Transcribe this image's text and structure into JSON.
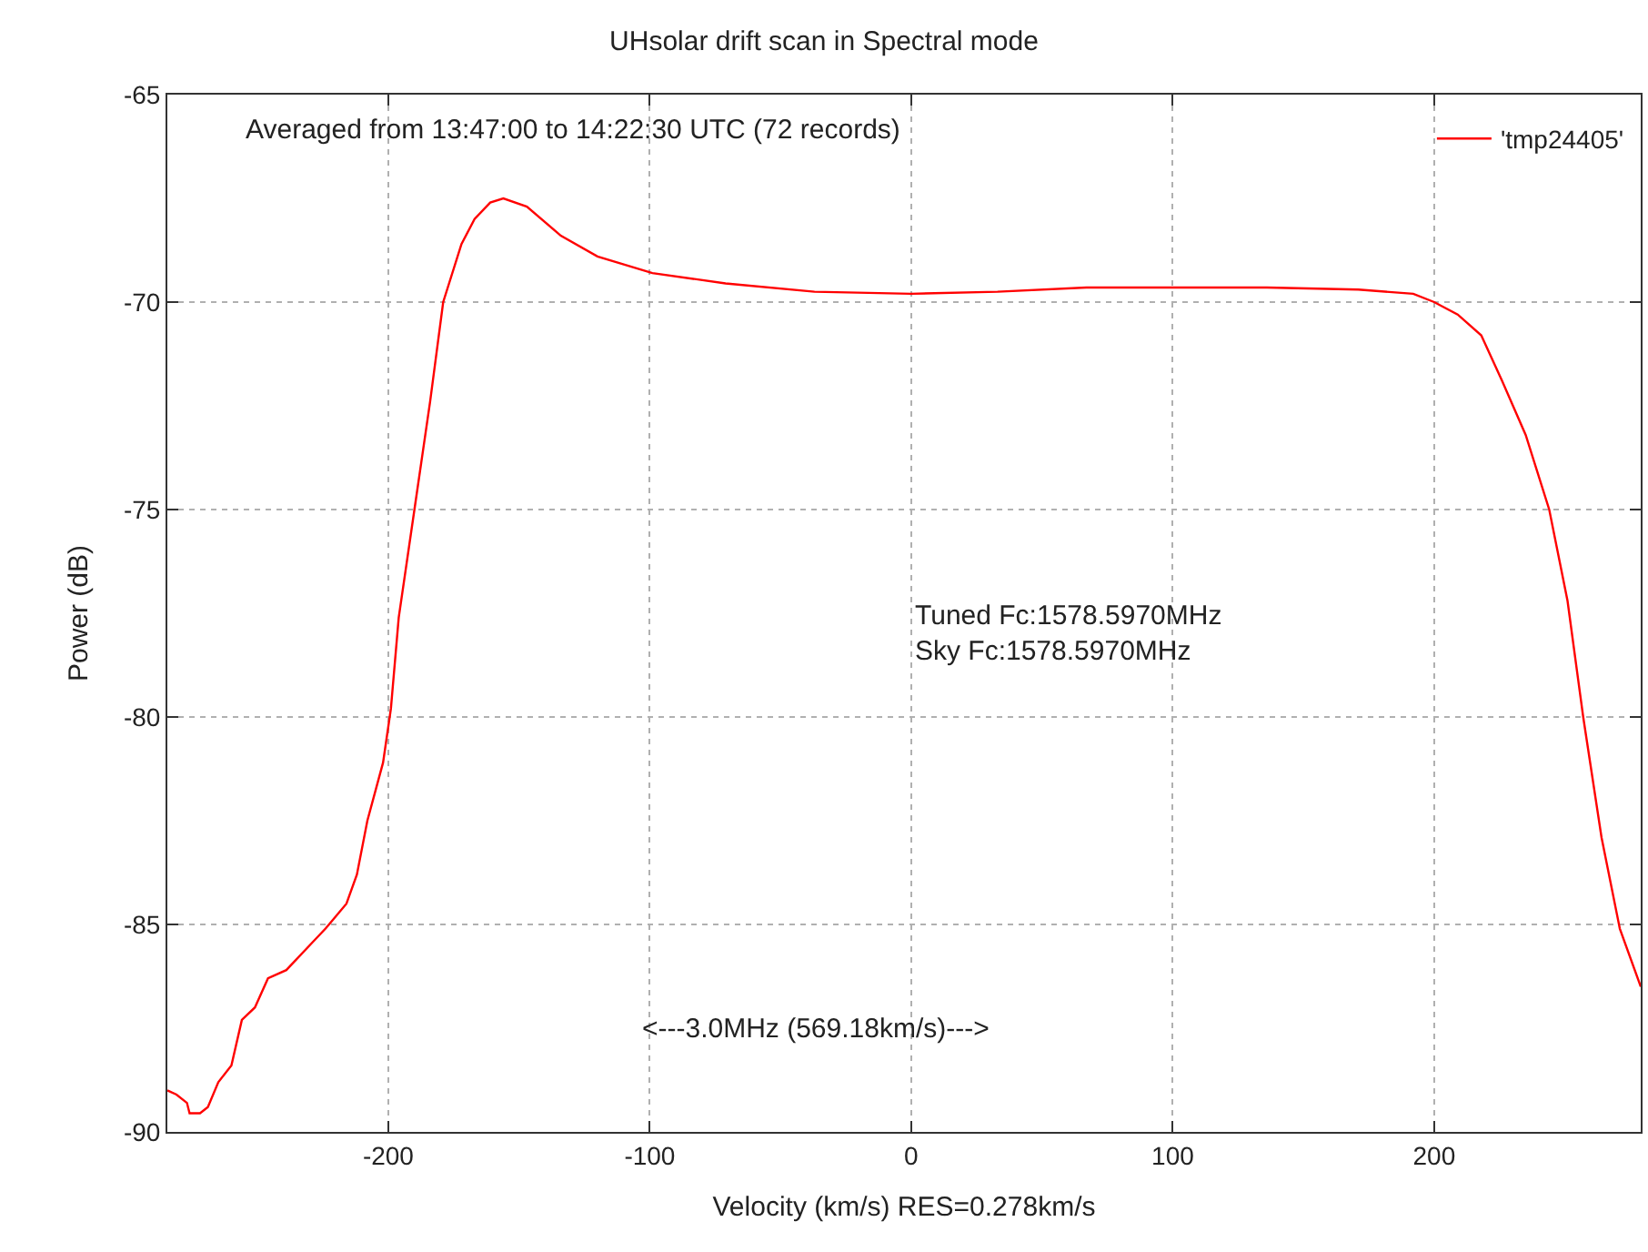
{
  "chart_data": {
    "type": "line",
    "title": "UHsolar drift scan in Spectral mode",
    "xlabel": "Velocity (km/s) RES=0.278km/s",
    "ylabel": "Power (dB)",
    "annotations": [
      "Averaged from 13:47:00 to 14:22:30 UTC (72 records)",
      "Tuned Fc:1578.5970MHz\nSky Fc:1578.5970MHz",
      "<---3.0MHz (569.18km/s)--->"
    ],
    "xlim": [
      -284.5,
      279
    ],
    "ylim": [
      -90,
      -65
    ],
    "xticks": [
      -200,
      -100,
      0,
      100,
      200
    ],
    "yticks": [
      -90,
      -85,
      -80,
      -75,
      -70,
      -65
    ],
    "grid": true,
    "legend": "top right",
    "line_style": "solid",
    "marker": "none",
    "series": [
      {
        "name": "'tmp24405'",
        "color": "#ff0000",
        "x": [
          -284.5,
          -281,
          -277,
          -276,
          -272,
          -269,
          -265,
          -260,
          -256,
          -251,
          -246,
          -239,
          -230,
          -224,
          -216,
          -212,
          -208,
          -202,
          -199,
          -196,
          -190,
          -184,
          -179,
          -172,
          -167,
          -161,
          -156,
          -147,
          -134,
          -120,
          -99,
          -71,
          -37,
          0,
          33,
          67,
          102,
          136,
          171,
          192,
          200,
          209,
          218,
          226,
          235,
          244,
          251,
          257,
          264,
          271,
          279
        ],
        "values": [
          -89.0,
          -89.1,
          -89.3,
          -89.55,
          -89.55,
          -89.4,
          -88.8,
          -88.4,
          -87.3,
          -87.0,
          -86.3,
          -86.1,
          -85.5,
          -85.1,
          -84.5,
          -83.8,
          -82.5,
          -81.1,
          -79.8,
          -77.6,
          -75.0,
          -72.4,
          -70.0,
          -68.6,
          -68.0,
          -67.6,
          -67.5,
          -67.7,
          -68.4,
          -68.9,
          -69.3,
          -69.55,
          -69.75,
          -69.8,
          -69.75,
          -69.65,
          -69.65,
          -69.65,
          -69.7,
          -69.8,
          -70.0,
          -70.3,
          -70.8,
          -71.9,
          -73.2,
          -75.0,
          -77.2,
          -80.0,
          -82.9,
          -85.1,
          -86.5
        ]
      }
    ]
  }
}
